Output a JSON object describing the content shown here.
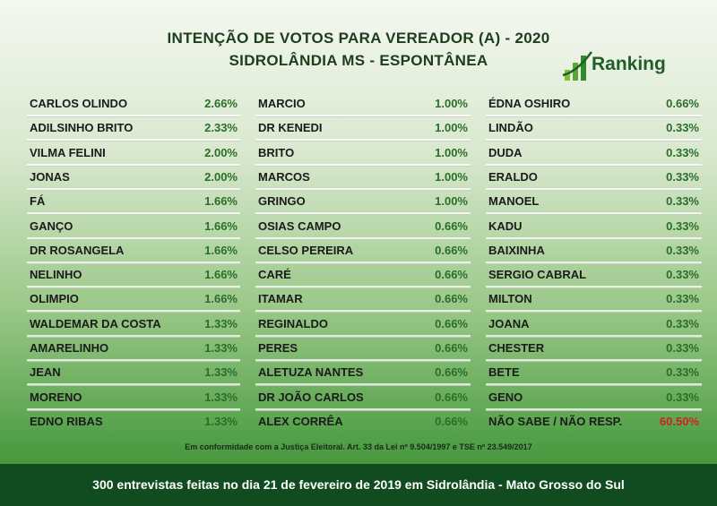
{
  "header": {
    "title": "INTENÇÃO DE VOTOS PARA VEREADOR (A) - 2020",
    "subtitle": "SIDROLÂNDIA MS - ESPONTÂNEA",
    "logo": "Ranking"
  },
  "columns": [
    {
      "rows": [
        [
          "CARLOS OLINDO",
          "2.66%"
        ],
        [
          "ADILSINHO BRITO",
          "2.33%"
        ],
        [
          "VILMA FELINI",
          "2.00%"
        ],
        [
          "JONAS",
          "2.00%"
        ],
        [
          "FÁ",
          "1.66%"
        ],
        [
          "GANÇO",
          "1.66%"
        ],
        [
          "DR ROSANGELA",
          "1.66%"
        ],
        [
          "NELINHO",
          "1.66%"
        ],
        [
          "OLIMPIO",
          "1.66%"
        ],
        [
          "WALDEMAR DA COSTA",
          "1.33%"
        ],
        [
          "AMARELINHO",
          "1.33%"
        ],
        [
          "JEAN",
          "1.33%"
        ],
        [
          "MORENO",
          "1.33%"
        ],
        [
          "EDNO RIBAS",
          "1.33%"
        ]
      ]
    },
    {
      "rows": [
        [
          "MARCIO",
          "1.00%"
        ],
        [
          "DR KENEDI",
          "1.00%"
        ],
        [
          "BRITO",
          "1.00%"
        ],
        [
          "MARCOS",
          "1.00%"
        ],
        [
          "GRINGO",
          "1.00%"
        ],
        [
          "OSIAS CAMPO",
          "0.66%"
        ],
        [
          "CELSO PEREIRA",
          "0.66%"
        ],
        [
          "CARÉ",
          "0.66%"
        ],
        [
          "ITAMAR",
          "0.66%"
        ],
        [
          "REGINALDO",
          "0.66%"
        ],
        [
          "PERES",
          "0.66%"
        ],
        [
          "ALETUZA NANTES",
          "0.66%"
        ],
        [
          "DR JOÃO CARLOS",
          "0.66%"
        ],
        [
          "ALEX CORRÊA",
          "0.66%"
        ]
      ]
    },
    {
      "rows": [
        [
          "ÉDNA OSHIRO",
          "0.66%"
        ],
        [
          "LINDÃO",
          "0.33%"
        ],
        [
          "DUDA",
          "0.33%"
        ],
        [
          "ERALDO",
          "0.33%"
        ],
        [
          "MANOEL",
          "0.33%"
        ],
        [
          "KADU",
          "0.33%"
        ],
        [
          "BAIXINHA",
          "0.33%"
        ],
        [
          "SERGIO CABRAL",
          "0.33%"
        ],
        [
          "MILTON",
          "0.33%"
        ],
        [
          "JOANA",
          "0.33%"
        ],
        [
          "CHESTER",
          "0.33%"
        ],
        [
          "BETE",
          "0.33%"
        ],
        [
          "GENO",
          "0.33%"
        ],
        [
          "NÃO SABE / NÃO RESP.",
          "60.50%"
        ]
      ]
    }
  ],
  "footnote": "Em conformidade com a Justiça Eleitoral. Art. 33 da Lei nº 9.504/1997 e TSE nº 23.549/2017",
  "footer": "300 entrevistas feitas no dia 21 de fevereiro de 2019 em Sidrolândia - Mato Grosso do Sul"
}
